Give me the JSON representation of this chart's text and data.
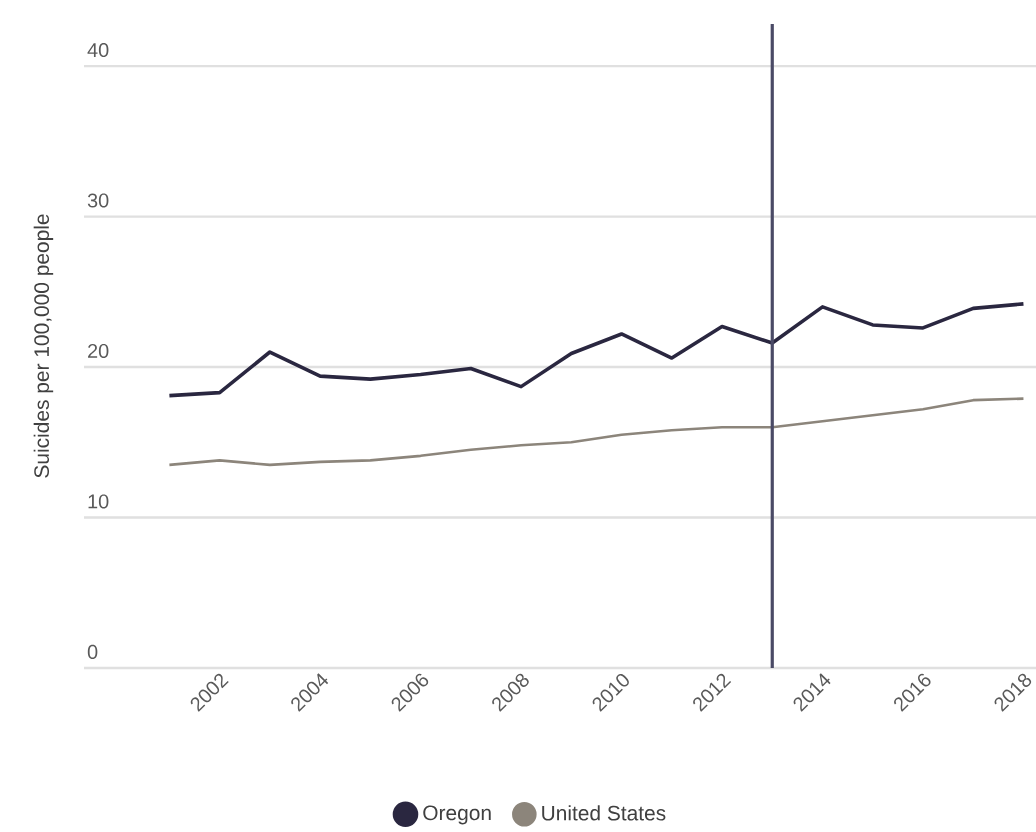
{
  "chart_data": {
    "type": "line",
    "ylabel": "Suicides per 100,000 people",
    "x": [
      2001,
      2002,
      2003,
      2004,
      2005,
      2006,
      2007,
      2008,
      2009,
      2010,
      2011,
      2012,
      2013,
      2014,
      2015,
      2016,
      2017,
      2018
    ],
    "series": [
      {
        "name": "Oregon",
        "color": "#2a2740",
        "values": [
          18.1,
          18.3,
          21.0,
          19.4,
          19.2,
          19.5,
          19.9,
          18.7,
          20.9,
          22.2,
          20.6,
          22.7,
          21.6,
          24.0,
          22.8,
          22.6,
          23.9,
          24.2
        ]
      },
      {
        "name": "United States",
        "color": "#8c857b",
        "values": [
          13.5,
          13.8,
          13.5,
          13.7,
          13.8,
          14.1,
          14.5,
          14.8,
          15.0,
          15.5,
          15.8,
          16.0,
          16.0,
          16.4,
          16.8,
          17.2,
          17.8,
          17.9
        ]
      }
    ],
    "xlim": [
      1999.3,
      2018.25
    ],
    "ylim": [
      0,
      42.8
    ],
    "xticks": [
      2002,
      2004,
      2006,
      2008,
      2010,
      2012,
      2014,
      2016,
      2018
    ],
    "yticks": [
      0,
      10,
      20,
      30,
      40
    ],
    "ref_lines": [
      {
        "axis": "x",
        "value": 2013,
        "color": "#4a4a66"
      }
    ],
    "grid": "y",
    "legend": "bottom",
    "marker": "none",
    "line_style": "solid"
  }
}
